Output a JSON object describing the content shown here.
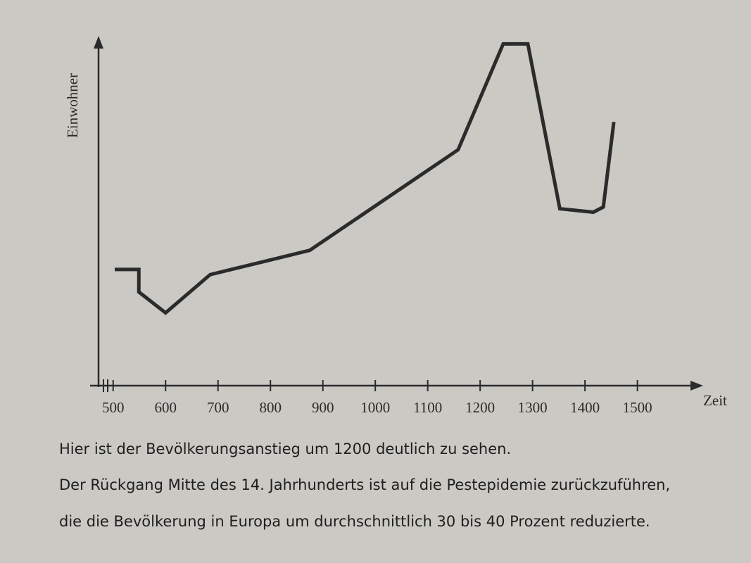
{
  "chart_data": {
    "type": "line",
    "y_label": "Einwohner",
    "x_label": "Zeit",
    "x": [
      503,
      549,
      549,
      600,
      685,
      875,
      1158,
      1244,
      1291,
      1352,
      1416,
      1435,
      1455
    ],
    "series": [
      {
        "color": "#2b2b2b",
        "values": [
          33.5,
          33.5,
          27,
          21,
          32,
          39,
          68,
          98.5,
          98.5,
          51,
          50,
          51.5,
          76
        ]
      }
    ],
    "xlim": [
      456,
      1620
    ],
    "ylim": [
      0,
      100
    ],
    "xticks": [
      500,
      600,
      700,
      800,
      900,
      1000,
      1100,
      1200,
      1300,
      1400,
      1500
    ],
    "caption": [
      "Hier ist der Bevölkerungsanstieg um 1200 deutlich zu sehen.",
      "Der Rückgang Mitte des 14. Jahrhunderts ist auf die Pestepidemie zurückzuführen,",
      "die die Bevölkerung in Europa um durchschnittlich 30 bis 40 Prozent reduzierte."
    ]
  }
}
